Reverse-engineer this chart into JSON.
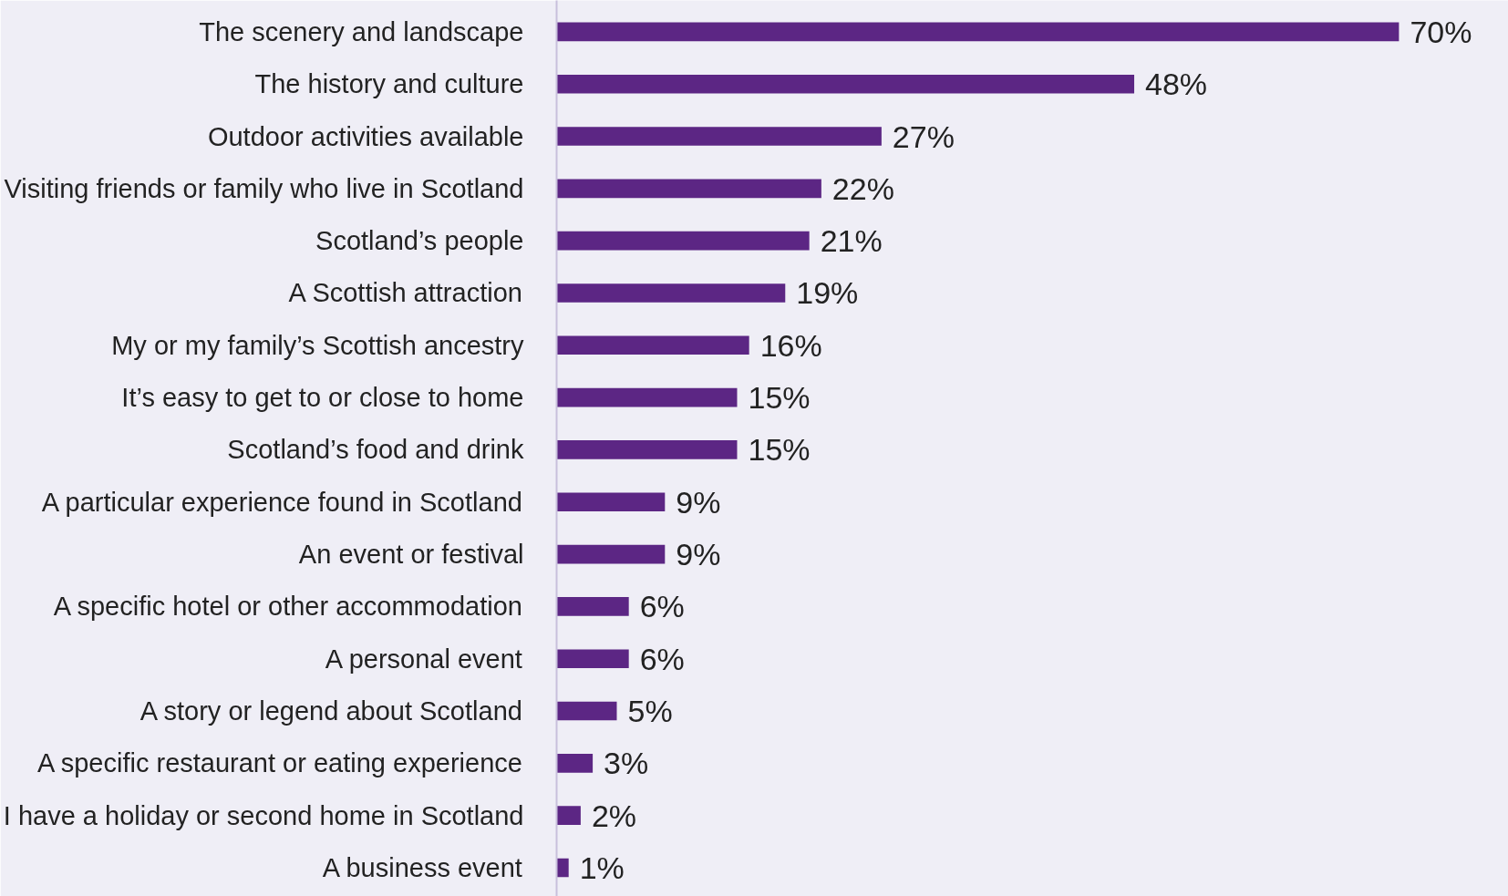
{
  "chart_data": {
    "type": "bar",
    "orientation": "horizontal",
    "categories": [
      "The scenery and landscape",
      "The history and culture",
      "Outdoor activities available",
      "Visiting friends or family who live in Scotland",
      "Scotland’s people",
      "A Scottish attraction",
      "My or my family’s Scottish ancestry",
      "It’s easy to get to or close to home",
      "Scotland’s food and drink",
      "A particular experience found in Scotland",
      "An event or festival",
      "A specific hotel or other accommodation",
      "A personal event",
      "A story or legend about Scotland",
      "A specific restaurant or eating experience",
      "I have a holiday or second home in Scotland",
      "A business event"
    ],
    "values": [
      70,
      48,
      27,
      22,
      21,
      19,
      16,
      15,
      15,
      9,
      9,
      6,
      6,
      5,
      3,
      2,
      1
    ],
    "value_labels": [
      "70%",
      "48%",
      "27%",
      "22%",
      "21%",
      "19%",
      "16%",
      "15%",
      "15%",
      "9%",
      "9%",
      "6%",
      "6%",
      "5%",
      "3%",
      "2%",
      "1%"
    ],
    "color": "#5c2684",
    "grid": false,
    "tick_labels": "y"
  }
}
